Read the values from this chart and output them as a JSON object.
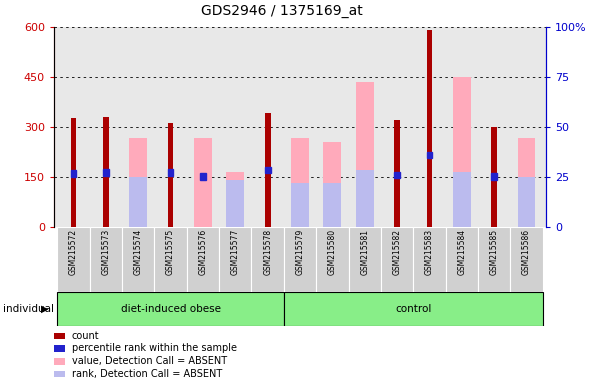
{
  "title": "GDS2946 / 1375169_at",
  "samples": [
    "GSM215572",
    "GSM215573",
    "GSM215574",
    "GSM215575",
    "GSM215576",
    "GSM215577",
    "GSM215578",
    "GSM215579",
    "GSM215580",
    "GSM215581",
    "GSM215582",
    "GSM215583",
    "GSM215584",
    "GSM215585",
    "GSM215586"
  ],
  "group_labels": [
    "diet-induced obese",
    "control"
  ],
  "red_values": [
    325,
    328,
    null,
    310,
    null,
    null,
    340,
    null,
    null,
    null,
    320,
    590,
    null,
    300,
    null
  ],
  "pink_values": [
    null,
    null,
    265,
    null,
    265,
    165,
    null,
    265,
    255,
    435,
    null,
    null,
    450,
    null,
    265
  ],
  "blue_dot_values": [
    160,
    162,
    null,
    162,
    150,
    null,
    170,
    null,
    null,
    null,
    155,
    215,
    null,
    150,
    null
  ],
  "light_blue_values": [
    null,
    null,
    150,
    null,
    null,
    140,
    null,
    130,
    130,
    170,
    null,
    null,
    165,
    null,
    150
  ],
  "ylim_left": [
    0,
    600
  ],
  "ylim_right": [
    0,
    100
  ],
  "yticks_left": [
    0,
    150,
    300,
    450,
    600
  ],
  "yticks_right": [
    0,
    25,
    50,
    75,
    100
  ],
  "left_tick_color": "#cc0000",
  "right_tick_color": "#0000cc",
  "red_color": "#aa0000",
  "pink_color": "#ffaabb",
  "blue_color": "#2222cc",
  "light_blue_color": "#bbbbee",
  "plot_bg_color": "#e8e8e8",
  "group_bg_color": "#88ee88",
  "legend_labels": [
    "count",
    "percentile rank within the sample",
    "value, Detection Call = ABSENT",
    "rank, Detection Call = ABSENT"
  ]
}
